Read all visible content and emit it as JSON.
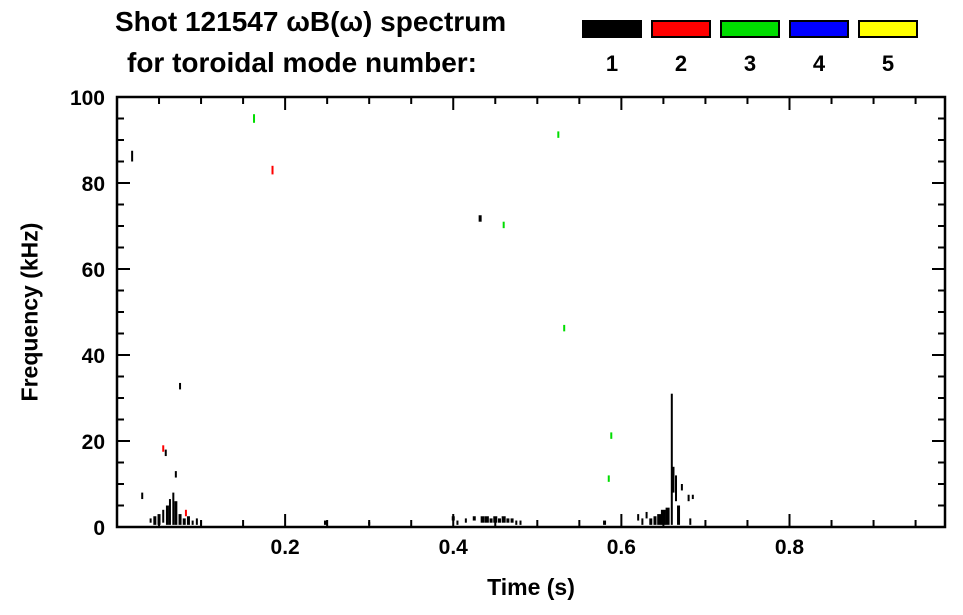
{
  "header": {
    "title": "Shot 121547 ωB(ω) spectrum",
    "subtitle": "for toroidal mode number:"
  },
  "legend": {
    "items": [
      {
        "label": "1",
        "color": "#000000"
      },
      {
        "label": "2",
        "color": "#ff0000"
      },
      {
        "label": "3",
        "color": "#00dd00"
      },
      {
        "label": "4",
        "color": "#0000ff"
      },
      {
        "label": "5",
        "color": "#ffff00"
      }
    ]
  },
  "chart_data": {
    "type": "scatter",
    "title": "Shot 121547 ωB(ω) spectrum for toroidal mode number: 1 2 3 4 5",
    "xlabel": "Time (s)",
    "ylabel": "Frequency (kHz)",
    "xlim": [
      0,
      0.985
    ],
    "ylim": [
      0,
      100
    ],
    "grid": false,
    "legend_position": "top-right",
    "xticks": {
      "major": [
        0.2,
        0.4,
        0.6,
        0.8
      ],
      "labels": [
        "0.2",
        "0.4",
        "0.6",
        "0.8"
      ],
      "minor_step": 0.05
    },
    "yticks": {
      "major": [
        0,
        20,
        40,
        60,
        80,
        100
      ],
      "labels": [
        "0",
        "20",
        "40",
        "60",
        "80",
        "100"
      ],
      "minor_step": 5
    },
    "mode_colors": {
      "1": "#000000",
      "2": "#ff0000",
      "3": "#00dd00",
      "4": "#0000ff",
      "5": "#ffff00"
    },
    "point_format": "[time_s, freq_lo_kHz, freq_hi_kHz, toroidal_mode_n, marker_width_px]",
    "points": [
      [
        0.018,
        85,
        87.5,
        1,
        2
      ],
      [
        0.03,
        6.5,
        8,
        1,
        2
      ],
      [
        0.04,
        1,
        2,
        1,
        2
      ],
      [
        0.045,
        0.5,
        2.5,
        1,
        3
      ],
      [
        0.05,
        0.5,
        3,
        1,
        3
      ],
      [
        0.055,
        1,
        4,
        1,
        2
      ],
      [
        0.055,
        17.5,
        19,
        2,
        2
      ],
      [
        0.058,
        16.5,
        18,
        1,
        2
      ],
      [
        0.06,
        0.5,
        5,
        1,
        3
      ],
      [
        0.063,
        0.5,
        6.5,
        1,
        2
      ],
      [
        0.067,
        0.5,
        8,
        1,
        2
      ],
      [
        0.07,
        0.5,
        6,
        1,
        3
      ],
      [
        0.07,
        11.5,
        13,
        1,
        2
      ],
      [
        0.075,
        32,
        33.5,
        1,
        2
      ],
      [
        0.075,
        0.5,
        3,
        1,
        3
      ],
      [
        0.08,
        0.5,
        2,
        1,
        3
      ],
      [
        0.082,
        2.5,
        4,
        2,
        2
      ],
      [
        0.085,
        0.5,
        2.5,
        1,
        3
      ],
      [
        0.09,
        0.5,
        1.5,
        1,
        2
      ],
      [
        0.095,
        0.5,
        2,
        1,
        2
      ],
      [
        0.1,
        0.5,
        1.5,
        1,
        2
      ],
      [
        0.163,
        94,
        96,
        3,
        2
      ],
      [
        0.185,
        82,
        84,
        2,
        2
      ],
      [
        0.248,
        0.5,
        1.5,
        1,
        3
      ],
      [
        0.3,
        0.5,
        1.2,
        1,
        2
      ],
      [
        0.4,
        1.5,
        2.5,
        1,
        3
      ],
      [
        0.405,
        0.5,
        1.5,
        1,
        2
      ],
      [
        0.415,
        1,
        2,
        1,
        2
      ],
      [
        0.425,
        1.5,
        2.5,
        1,
        3
      ],
      [
        0.432,
        71,
        72.5,
        1,
        3
      ],
      [
        0.435,
        1,
        2.5,
        1,
        4
      ],
      [
        0.44,
        1,
        2.5,
        1,
        4
      ],
      [
        0.445,
        1,
        2,
        1,
        3
      ],
      [
        0.45,
        1,
        2.5,
        1,
        4
      ],
      [
        0.455,
        1,
        2,
        1,
        3
      ],
      [
        0.46,
        69.5,
        71,
        3,
        2
      ],
      [
        0.46,
        1,
        2.5,
        1,
        4
      ],
      [
        0.465,
        1,
        2,
        1,
        3
      ],
      [
        0.47,
        1,
        2,
        1,
        3
      ],
      [
        0.475,
        0.5,
        1.5,
        1,
        2
      ],
      [
        0.48,
        0.5,
        1.5,
        1,
        2
      ],
      [
        0.525,
        90.5,
        92,
        3,
        2
      ],
      [
        0.532,
        45.5,
        47,
        3,
        2
      ],
      [
        0.58,
        0.5,
        1.5,
        1,
        3
      ],
      [
        0.585,
        10.5,
        12,
        3,
        2
      ],
      [
        0.588,
        20.5,
        22,
        3,
        2
      ],
      [
        0.62,
        1.5,
        3,
        1,
        2
      ],
      [
        0.625,
        0.5,
        2,
        1,
        2
      ],
      [
        0.63,
        2,
        3.5,
        1,
        2
      ],
      [
        0.635,
        0.5,
        2,
        1,
        3
      ],
      [
        0.64,
        0.5,
        2.5,
        1,
        3
      ],
      [
        0.645,
        0.5,
        3,
        1,
        4
      ],
      [
        0.65,
        0.5,
        4,
        1,
        5
      ],
      [
        0.655,
        0.5,
        4.5,
        1,
        4
      ],
      [
        0.66,
        0.5,
        31,
        1,
        2
      ],
      [
        0.662,
        8,
        14,
        1,
        2
      ],
      [
        0.665,
        6,
        12,
        1,
        2
      ],
      [
        0.668,
        0.5,
        5,
        1,
        3
      ],
      [
        0.672,
        8.5,
        10,
        1,
        2
      ],
      [
        0.68,
        6,
        7.5,
        1,
        2
      ],
      [
        0.682,
        0.5,
        2,
        1,
        2
      ],
      [
        0.685,
        6.5,
        7.5,
        1,
        2
      ]
    ]
  }
}
